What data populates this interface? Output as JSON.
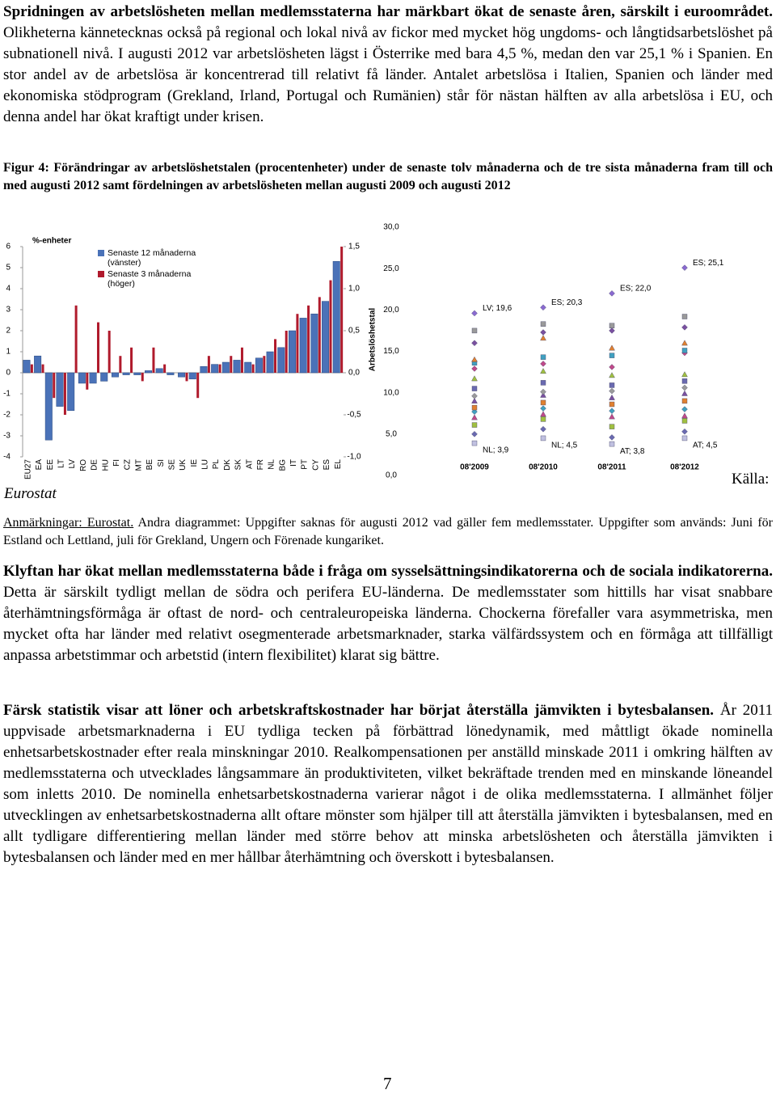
{
  "paragraphs": [
    {
      "lead": "Spridningen av arbetslösheten mellan medlemsstaterna har märkbart ökat de senaste åren, särskilt i euroområdet.",
      "text": "Olikheterna kännetecknas också på regional och lokal nivå av fickor med mycket hög ungdoms- och långtidsarbetslöshet på subnationell nivå. I augusti 2012 var arbetslösheten lägst i Österrike med bara 4,5 %, medan den var 25,1 % i Spanien. En stor andel av de arbetslösa är koncentrerad till relativt få länder. Antalet arbetslösa i Italien, Spanien och länder med ekonomiska stödprogram (Grekland, Irland, Portugal och Rumänien) står för nästan hälften av alla arbetslösa i EU, och denna andel har ökat kraftigt under krisen."
    },
    {
      "lead": "Klyftan har ökat mellan medlemsstaterna både i fråga om sysselsättningsindikatorerna och de sociala indikatorerna.",
      "text": "Detta är särskilt tydligt mellan de södra och perifera EU-länderna. De medlemsstater som hittills har visat snabbare återhämtningsförmåga är oftast de nord- och centraleuropeiska länderna. Chockerna förefaller vara asymmetriska, men mycket ofta har länder med relativt osegmenterade arbetsmarknader, starka välfärdssystem och en förmåga att tillfälligt anpassa arbetstimmar och arbetstid (intern flexibilitet) klarat sig bättre."
    },
    {
      "lead": "Färsk statistik visar att löner och arbetskraftskostnader har börjat återställa jämvikten i bytesbalansen.",
      "text": "År 2011 uppvisade arbetsmarknaderna i EU tydliga tecken på förbättrad lönedynamik, med måttligt ökade nominella enhetsarbetskostnader efter reala minskningar 2010. Realkompensationen per anställd minskade 2011 i omkring hälften av medlemsstaterna och utvecklades långsammare än produktiviteten, vilket bekräftade trenden med en minskande löneandel som inletts 2010. De nominella enhetsarbetskostnaderna varierar något i de olika medlemsstaterna. I allmänhet följer utvecklingen av enhetsarbetskostnaderna allt oftare mönster som hjälper till att återställa jämvikten i bytesbalansen, med en allt tydligare differentiering mellan länder med större behov att minska arbetslösheten och återställa jämvikten i bytesbalansen och länder med en mer hållbar återhämtning och överskott i bytesbalansen."
    }
  ],
  "figure": {
    "caption": "Figur 4: Förändringar av arbetslöshetstalen (procentenheter) under de senaste tolv månaderna och de tre sista månaderna fram till och med augusti 2012 samt fördelningen av arbetslösheten mellan augusti 2009 och augusti 2012",
    "source": "Eurostat",
    "source_prefix": "Källa:"
  },
  "notes": {
    "lead": "Anmärkningar: Eurostat.",
    "text": "Andra diagrammet: Uppgifter saknas för augusti 2012 vad gäller fem medlemsstater. Uppgifter som används: Juni för Estland och Lettland, juli för Grekland, Ungern och Förenade kungariket."
  },
  "page_number": 7,
  "chart_data": [
    {
      "type": "bar",
      "y_label": "%-enheter",
      "categories": [
        "EU27",
        "EA",
        "EE",
        "LT",
        "LV",
        "RO",
        "DE",
        "HU",
        "FI",
        "CZ",
        "MT",
        "BE",
        "SI",
        "SE",
        "UK",
        "IE",
        "LU",
        "PL",
        "DK",
        "SK",
        "AT",
        "FR",
        "NL",
        "BG",
        "IT",
        "PT",
        "CY",
        "ES",
        "EL"
      ],
      "series": [
        {
          "name": "Senaste 12 månaderna (vänster)",
          "color": "#4a72b8",
          "values": [
            0.6,
            0.8,
            -3.2,
            -1.6,
            -1.8,
            -0.5,
            -0.5,
            -0.4,
            -0.2,
            -0.1,
            -0.1,
            0.1,
            0.2,
            -0.1,
            -0.2,
            -0.3,
            0.3,
            0.4,
            0.5,
            0.6,
            0.5,
            0.7,
            1.0,
            1.2,
            2.0,
            2.6,
            2.8,
            3.4,
            5.3
          ]
        },
        {
          "name": "Senaste 3 månaderna (höger)",
          "color": "#b01a2c",
          "axis": "y2",
          "values": [
            0.1,
            0.1,
            -0.3,
            -0.5,
            0.8,
            -0.2,
            0.6,
            0.5,
            0.2,
            0.3,
            -0.1,
            0.3,
            0.1,
            0.0,
            -0.1,
            -0.3,
            0.2,
            0.1,
            0.2,
            0.3,
            0.1,
            0.2,
            0.4,
            0.5,
            0.7,
            0.8,
            0.9,
            1.1,
            1.5
          ]
        }
      ],
      "ylim": [
        -4,
        6
      ],
      "yticks": [
        6,
        5,
        4,
        3,
        2,
        1,
        0,
        -1,
        -2,
        -3,
        -4
      ],
      "y2lim": [
        -1,
        1.5
      ],
      "y2ticks": [
        {
          "value": 1.5,
          "label": "1,5"
        },
        {
          "value": 1.0,
          "label": "1,0"
        },
        {
          "value": 0.5,
          "label": "0,5"
        },
        {
          "value": 0.0,
          "label": "0,0"
        },
        {
          "value": -0.5,
          "label": "-0,5"
        },
        {
          "value": -1.0,
          "label": "-1,0"
        }
      ]
    },
    {
      "type": "scatter",
      "y_label": "Arbetslöshetstal",
      "categories": [
        "08'2009",
        "08'2010",
        "08'2011",
        "08'2012"
      ],
      "points": [
        [
          5.0,
          6.1,
          7.0,
          7.7,
          8.2,
          9.0,
          9.6,
          10.5,
          11.7,
          12.9,
          13.6,
          14.0,
          16.0,
          17.5
        ],
        [
          5.6,
          6.8,
          7.4,
          8.1,
          8.8,
          9.7,
          10.1,
          11.2,
          12.6,
          13.5,
          14.3,
          16.6,
          17.3,
          18.3
        ],
        [
          4.6,
          5.9,
          7.1,
          7.8,
          8.6,
          9.4,
          10.2,
          10.9,
          12.1,
          13.1,
          14.5,
          15.4,
          17.5,
          18.1
        ],
        [
          5.3,
          6.6,
          7.2,
          8.0,
          9.0,
          9.9,
          10.6,
          11.4,
          12.2,
          14.8,
          15.1,
          16.0,
          17.9,
          19.2
        ]
      ],
      "highs": {
        "values": [
          19.6,
          20.3,
          22.0,
          25.1
        ],
        "value_labels": [
          "LV; 19,6",
          "ES; 20,3",
          "ES; 22,0",
          "ES; 25,1"
        ]
      },
      "lows": {
        "values": [
          3.9,
          4.5,
          3.8,
          4.5
        ],
        "value_labels": [
          "NL; 3,9",
          "NL; 4,5",
          "AT; 3,8",
          "AT; 4,5"
        ]
      },
      "ylim": [
        0,
        30
      ],
      "yticks": [
        {
          "value": 0,
          "label": "0,0"
        },
        {
          "value": 5,
          "label": "5,0"
        },
        {
          "value": 10,
          "label": "10,0"
        },
        {
          "value": 15,
          "label": "15,0"
        },
        {
          "value": 20,
          "label": "20,0"
        },
        {
          "value": 25,
          "label": "25,0"
        },
        {
          "value": 30,
          "label": "30,0"
        }
      ]
    }
  ]
}
